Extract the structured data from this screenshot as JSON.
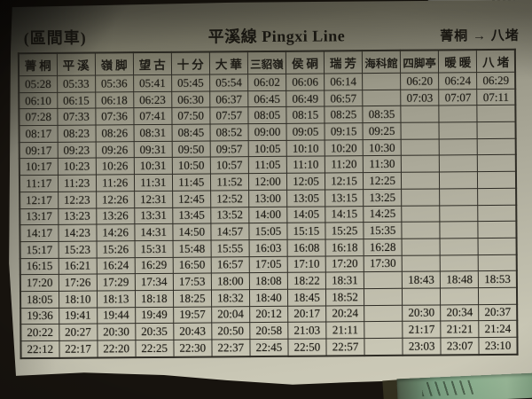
{
  "header": {
    "train_type": "(區間車)",
    "title": "平溪線 Pingxi Line",
    "direction": "菁桐 → 八堵"
  },
  "table": {
    "columns": [
      "菁桐",
      "平溪",
      "嶺脚",
      "望古",
      "十分",
      "大華",
      "三貂嶺",
      "侯硐",
      "瑞芳",
      "海科館",
      "四脚亭",
      "暖暖",
      "八堵"
    ],
    "rows": [
      [
        "05:28",
        "05:33",
        "05:36",
        "05:41",
        "05:45",
        "05:54",
        "06:02",
        "06:06",
        "06:14",
        "",
        "06:20",
        "06:24",
        "06:29"
      ],
      [
        "06:10",
        "06:15",
        "06:18",
        "06:23",
        "06:30",
        "06:37",
        "06:45",
        "06:49",
        "06:57",
        "",
        "07:03",
        "07:07",
        "07:11"
      ],
      [
        "07:28",
        "07:33",
        "07:36",
        "07:41",
        "07:50",
        "07:57",
        "08:05",
        "08:15",
        "08:25",
        "08:35",
        "",
        "",
        ""
      ],
      [
        "08:17",
        "08:23",
        "08:26",
        "08:31",
        "08:45",
        "08:52",
        "09:00",
        "09:05",
        "09:15",
        "09:25",
        "",
        "",
        ""
      ],
      [
        "09:17",
        "09:23",
        "09:26",
        "09:31",
        "09:50",
        "09:57",
        "10:05",
        "10:10",
        "10:20",
        "10:30",
        "",
        "",
        ""
      ],
      [
        "10:17",
        "10:23",
        "10:26",
        "10:31",
        "10:50",
        "10:57",
        "11:05",
        "11:10",
        "11:20",
        "11:30",
        "",
        "",
        ""
      ],
      [
        "11:17",
        "11:23",
        "11:26",
        "11:31",
        "11:45",
        "11:52",
        "12:00",
        "12:05",
        "12:15",
        "12:25",
        "",
        "",
        ""
      ],
      [
        "12:17",
        "12:23",
        "12:26",
        "12:31",
        "12:45",
        "12:52",
        "13:00",
        "13:05",
        "13:15",
        "13:25",
        "",
        "",
        ""
      ],
      [
        "13:17",
        "13:23",
        "13:26",
        "13:31",
        "13:45",
        "13:52",
        "14:00",
        "14:05",
        "14:15",
        "14:25",
        "",
        "",
        ""
      ],
      [
        "14:17",
        "14:23",
        "14:26",
        "14:31",
        "14:50",
        "14:57",
        "15:05",
        "15:15",
        "15:25",
        "15:35",
        "",
        "",
        ""
      ],
      [
        "15:17",
        "15:23",
        "15:26",
        "15:31",
        "15:48",
        "15:55",
        "16:03",
        "16:08",
        "16:18",
        "16:28",
        "",
        "",
        ""
      ],
      [
        "16:15",
        "16:21",
        "16:24",
        "16:29",
        "16:50",
        "16:57",
        "17:05",
        "17:10",
        "17:20",
        "17:30",
        "",
        "",
        ""
      ],
      [
        "17:20",
        "17:26",
        "17:29",
        "17:34",
        "17:53",
        "18:00",
        "18:08",
        "18:22",
        "18:31",
        "",
        "18:43",
        "18:48",
        "18:53"
      ],
      [
        "18:05",
        "18:10",
        "18:13",
        "18:18",
        "18:25",
        "18:32",
        "18:40",
        "18:45",
        "18:52",
        "",
        "",
        "",
        ""
      ],
      [
        "19:36",
        "19:41",
        "19:44",
        "19:49",
        "19:57",
        "20:04",
        "20:12",
        "20:17",
        "20:24",
        "",
        "20:30",
        "20:34",
        "20:37"
      ],
      [
        "20:22",
        "20:27",
        "20:30",
        "20:35",
        "20:43",
        "20:50",
        "20:58",
        "21:03",
        "21:11",
        "",
        "21:17",
        "21:21",
        "21:24"
      ],
      [
        "22:12",
        "22:17",
        "22:20",
        "22:25",
        "22:30",
        "22:37",
        "22:45",
        "22:50",
        "22:57",
        "",
        "23:03",
        "23:07",
        "23:10"
      ]
    ]
  },
  "colors": {
    "backdrop": "#17130e",
    "paper_light": "#cfccba",
    "paper_dark": "#56554a",
    "grid_line": "#2e2c25",
    "ink": "#201e18",
    "scrap_green": "#8fb392"
  }
}
